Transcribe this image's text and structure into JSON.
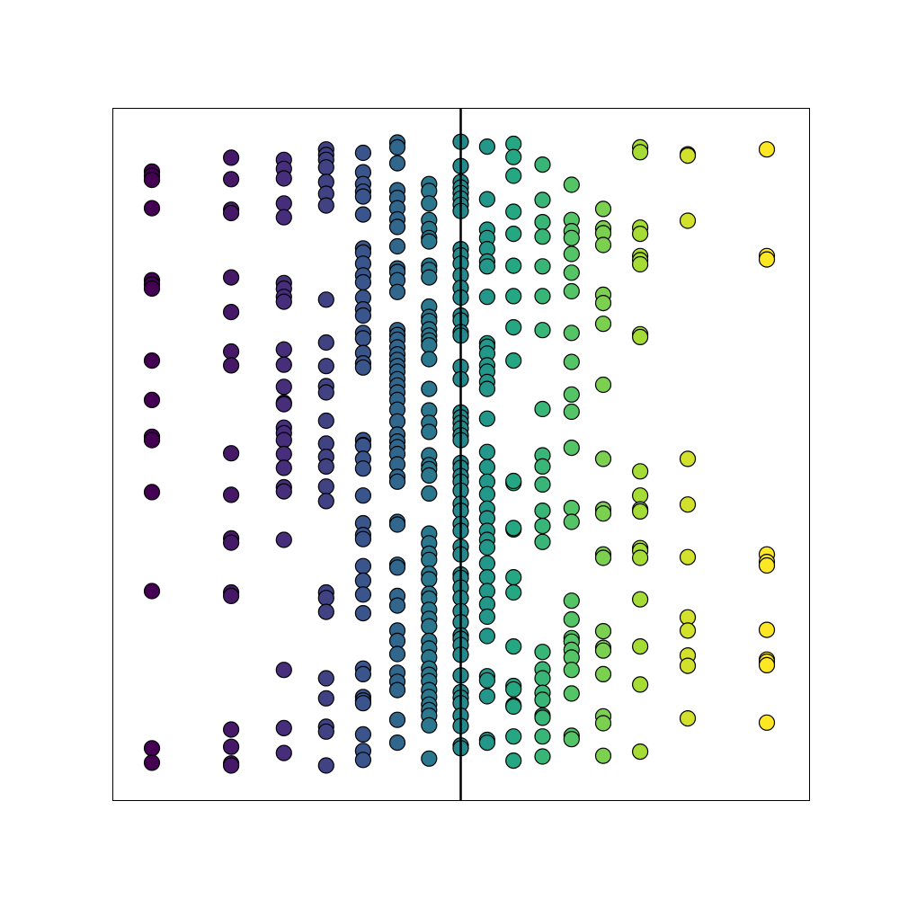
{
  "chart_data": {
    "type": "scatter",
    "title": "",
    "xlabel": "",
    "ylabel": "",
    "grid": false,
    "legend": "none",
    "axes_ticks_visible": false,
    "colormap": "viridis",
    "marker": {
      "shape": "circle",
      "edgecolor": "#000000"
    },
    "xlim": [
      -1.32,
      1.32
    ],
    "ylim": [
      0.0,
      1.0
    ],
    "vline": {
      "x": 0.0,
      "color": "#000000"
    },
    "series": [
      {
        "x": -1.17,
        "y": [
          0.908,
          0.902,
          0.896,
          0.855,
          0.751,
          0.745,
          0.739,
          0.635,
          0.578,
          0.525,
          0.52,
          0.445,
          0.302,
          0.075,
          0.054
        ]
      },
      {
        "x": -0.87,
        "y": [
          0.928,
          0.897,
          0.853,
          0.848,
          0.755,
          0.705,
          0.648,
          0.628,
          0.501,
          0.441,
          0.378,
          0.372,
          0.3,
          0.295,
          0.102,
          0.077,
          0.053,
          0.05
        ]
      },
      {
        "x": -0.67,
        "y": [
          0.925,
          0.912,
          0.898,
          0.862,
          0.842,
          0.747,
          0.739,
          0.727,
          0.72,
          0.651,
          0.629,
          0.597,
          0.574,
          0.572,
          0.538,
          0.53,
          0.52,
          0.5,
          0.48,
          0.452,
          0.446,
          0.376,
          0.188,
          0.104,
          0.068
        ]
      },
      {
        "x": -0.51,
        "y": [
          0.94,
          0.932,
          0.925,
          0.914,
          0.893,
          0.876,
          0.859,
          0.723,
          0.661,
          0.627,
          0.598,
          0.589,
          0.548,
          0.515,
          0.496,
          0.482,
          0.453,
          0.432,
          0.3,
          0.292,
          0.272,
          0.176,
          0.147,
          0.106,
          0.099,
          0.05
        ]
      },
      {
        "x": -0.37,
        "y": [
          0.935,
          0.907,
          0.89,
          0.879,
          0.872,
          0.846,
          0.797,
          0.791,
          0.775,
          0.758,
          0.748,
          0.726,
          0.709,
          0.7,
          0.675,
          0.667,
          0.646,
          0.631,
          0.625,
          0.52,
          0.513,
          0.512,
          0.493,
          0.479,
          0.44,
          0.4,
          0.383,
          0.377,
          0.338,
          0.317,
          0.297,
          0.27,
          0.19,
          0.182,
          0.149,
          0.144,
          0.14,
          0.095,
          0.071,
          0.058
        ]
      },
      {
        "x": -0.24,
        "y": [
          0.95,
          0.943,
          0.92,
          0.881,
          0.87,
          0.855,
          0.839,
          0.828,
          0.8,
          0.768,
          0.763,
          0.751,
          0.734,
          0.679,
          0.672,
          0.665,
          0.654,
          0.644,
          0.636,
          0.627,
          0.619,
          0.608,
          0.599,
          0.589,
          0.578,
          0.564,
          0.547,
          0.528,
          0.518,
          0.51,
          0.5,
          0.485,
          0.467,
          0.46,
          0.402,
          0.398,
          0.34,
          0.336,
          0.295,
          0.281,
          0.245,
          0.23,
          0.211,
          0.184,
          0.171,
          0.159,
          0.116,
          0.083
        ]
      },
      {
        "x": -0.12,
        "y": [
          0.89,
          0.88,
          0.862,
          0.838,
          0.825,
          0.812,
          0.807,
          0.772,
          0.766,
          0.755,
          0.713,
          0.698,
          0.692,
          0.68,
          0.671,
          0.664,
          0.657,
          0.637,
          0.594,
          0.563,
          0.545,
          0.532,
          0.498,
          0.484,
          0.478,
          0.469,
          0.443,
          0.385,
          0.371,
          0.356,
          0.347,
          0.327,
          0.319,
          0.298,
          0.291,
          0.275,
          0.262,
          0.251,
          0.23,
          0.219,
          0.206,
          0.19,
          0.181,
          0.172,
          0.159,
          0.149,
          0.138,
          0.13,
          0.122,
          0.108,
          0.06
        ]
      },
      {
        "x": 0.0,
        "y": [
          0.951,
          0.916,
          0.893,
          0.885,
          0.877,
          0.869,
          0.86,
          0.851,
          0.796,
          0.787,
          0.775,
          0.758,
          0.74,
          0.726,
          0.7,
          0.693,
          0.676,
          0.671,
          0.626,
          0.608,
          0.56,
          0.553,
          0.545,
          0.537,
          0.527,
          0.52,
          0.487,
          0.48,
          0.468,
          0.46,
          0.447,
          0.428,
          0.418,
          0.399,
          0.389,
          0.366,
          0.355,
          0.326,
          0.321,
          0.307,
          0.292,
          0.273,
          0.257,
          0.238,
          0.233,
          0.224,
          0.21,
          0.18,
          0.156,
          0.148,
          0.14,
          0.122,
          0.107,
          0.079,
          0.075
        ]
      },
      {
        "x": 0.1,
        "y": [
          0.944,
          0.868,
          0.824,
          0.812,
          0.796,
          0.778,
          0.771,
          0.727,
          0.66,
          0.655,
          0.645,
          0.628,
          0.619,
          0.604,
          0.594,
          0.551,
          0.503,
          0.481,
          0.46,
          0.442,
          0.421,
          0.407,
          0.389,
          0.376,
          0.365,
          0.342,
          0.322,
          0.302,
          0.283,
          0.265,
          0.237,
          0.179,
          0.173,
          0.15,
          0.087,
          0.083
        ]
      },
      {
        "x": 0.2,
        "y": [
          0.948,
          0.929,
          0.902,
          0.85,
          0.818,
          0.772,
          0.728,
          0.683,
          0.635,
          0.458,
          0.461,
          0.391,
          0.393,
          0.322,
          0.3,
          0.222,
          0.165,
          0.16,
          0.137,
          0.135,
          0.092,
          0.057
        ]
      },
      {
        "x": 0.31,
        "y": [
          0.918,
          0.867,
          0.835,
          0.814,
          0.771,
          0.728,
          0.679,
          0.565,
          0.498,
          0.482,
          0.456,
          0.418,
          0.396,
          0.373,
          0.214,
          0.189,
          0.176,
          0.155,
          0.145,
          0.122,
          0.119,
          0.092,
          0.063
        ]
      },
      {
        "x": 0.42,
        "y": [
          0.889,
          0.838,
          0.822,
          0.812,
          0.789,
          0.762,
          0.735,
          0.675,
          0.633,
          0.586,
          0.561,
          0.509,
          0.422,
          0.402,
          0.288,
          0.261,
          0.234,
          0.229,
          0.217,
          0.206,
          0.188,
          0.154,
          0.093,
          0.088
        ]
      },
      {
        "x": 0.54,
        "y": [
          0.854,
          0.826,
          0.819,
          0.802,
          0.73,
          0.718,
          0.688,
          0.6,
          0.493,
          0.42,
          0.414,
          0.355,
          0.35,
          0.244,
          0.22,
          0.216,
          0.182,
          0.121,
          0.111,
          0.064
        ]
      },
      {
        "x": 0.68,
        "y": [
          0.943,
          0.936,
          0.827,
          0.818,
          0.786,
          0.78,
          0.774,
          0.673,
          0.669,
          0.475,
          0.44,
          0.42,
          0.417,
          0.364,
          0.36,
          0.35,
          0.29,
          0.222,
          0.167,
          0.07
        ]
      },
      {
        "x": 0.86,
        "y": [
          0.933,
          0.931,
          0.837,
          0.493,
          0.427,
          0.351,
          0.264,
          0.245,
          0.209,
          0.194,
          0.118
        ]
      },
      {
        "x": 1.16,
        "y": [
          0.94,
          0.786,
          0.781,
          0.355,
          0.344,
          0.339,
          0.246,
          0.203,
          0.2,
          0.195,
          0.112
        ]
      }
    ]
  }
}
